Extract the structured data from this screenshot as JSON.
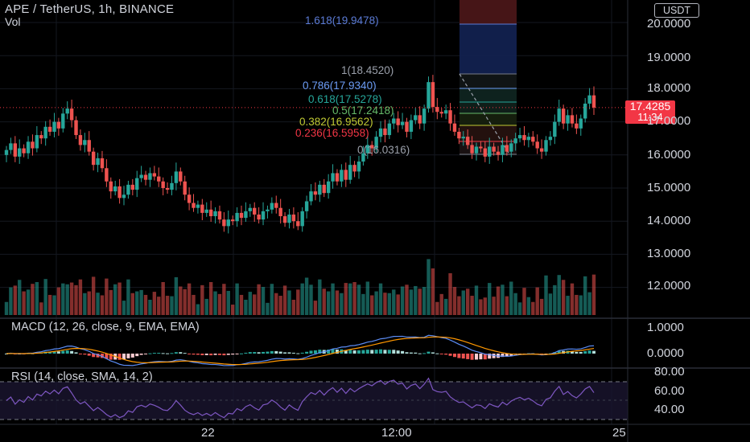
{
  "symbol_legend": "APE / TetherUS, 1h, BINANCE",
  "volume_label": "Vol",
  "currency": "USDT",
  "last_price": "17.4285",
  "countdown": "11:34",
  "macd_title": "MACD (12, 26, close, 9, EMA, EMA)",
  "rsi_title": "RSI (14, close, SMA, 14, 2)",
  "price_axis": [
    "20.0000",
    "19.0000",
    "18.0000",
    "17.0000",
    "16.0000",
    "15.0000",
    "14.0000",
    "13.0000",
    "12.0000"
  ],
  "macd_axis": [
    "1.0000",
    "0.0000"
  ],
  "rsi_axis": [
    "80.00",
    "60.00",
    "40.00"
  ],
  "time_axis": [
    "22",
    "12:00",
    "25"
  ],
  "fib_levels": [
    {
      "label": "1.618(19.9478)",
      "color": "#5b7bd6"
    },
    {
      "label": "1(18.4520)",
      "color": "#9ba0ab"
    },
    {
      "label": "0.786(17.9340)",
      "color": "#6c9cf5"
    },
    {
      "label": "0.618(17.5278)",
      "color": "#26a69a"
    },
    {
      "label": "0.5(17.2418)",
      "color": "#66bb6a"
    },
    {
      "label": "0.382(16.9562)",
      "color": "#c0ca33"
    },
    {
      "label": "0.236(16.5958)",
      "color": "#f23645"
    },
    {
      "label": "0(16.0316)",
      "color": "#9ba0ab"
    }
  ],
  "colors": {
    "up": "#26a69a",
    "down": "#ef5350",
    "macd": "#5b8cf5",
    "signal": "#ff9800",
    "rsi": "#7e57c2"
  },
  "chart_data": {
    "type": "candlestick",
    "symbol": "APE / TetherUS",
    "interval": "1h",
    "price_range": [
      11.5,
      20.5
    ],
    "closes": [
      16.15,
      16.35,
      15.95,
      16.2,
      16.05,
      16.4,
      16.2,
      16.6,
      16.5,
      16.85,
      16.7,
      17.0,
      16.8,
      17.25,
      17.4,
      17.05,
      16.6,
      16.3,
      16.45,
      16.1,
      15.7,
      15.9,
      15.6,
      15.2,
      14.9,
      15.05,
      14.7,
      14.8,
      15.1,
      14.95,
      15.3,
      15.4,
      15.25,
      15.45,
      15.35,
      15.2,
      15.0,
      14.95,
      15.15,
      15.5,
      15.2,
      14.8,
      14.55,
      14.4,
      14.5,
      14.25,
      14.35,
      14.15,
      14.3,
      14.05,
      13.85,
      14.05,
      14.0,
      14.25,
      14.1,
      14.3,
      14.4,
      14.2,
      14.05,
      14.3,
      14.35,
      14.55,
      14.4,
      14.15,
      13.95,
      14.2,
      14.0,
      13.85,
      14.3,
      14.6,
      14.9,
      14.8,
      15.1,
      14.85,
      15.2,
      15.45,
      15.2,
      15.55,
      15.25,
      15.7,
      15.5,
      15.8,
      16.05,
      16.3,
      16.2,
      16.55,
      16.8,
      16.6,
      16.95,
      17.1,
      16.9,
      17.0,
      16.7,
      17.05,
      17.2,
      16.95,
      17.4,
      18.2,
      17.45,
      17.3,
      17.25,
      17.35,
      16.95,
      16.7,
      16.5,
      16.55,
      16.3,
      16.05,
      16.25,
      16.2,
      15.95,
      16.25,
      16.1,
      16.0,
      16.3,
      16.1,
      16.35,
      16.5,
      16.6,
      16.45,
      16.55,
      16.4,
      16.2,
      16.1,
      16.45,
      16.55,
      17.0,
      17.4,
      16.95,
      17.2,
      16.95,
      16.8,
      17.1,
      17.55,
      17.8,
      17.43
    ],
    "volume_pattern_note": "",
    "indicators": [
      "Vol",
      "MACD (12, 26, close, 9, EMA, EMA)",
      "RSI (14, close, SMA, 14, 2)"
    ]
  }
}
